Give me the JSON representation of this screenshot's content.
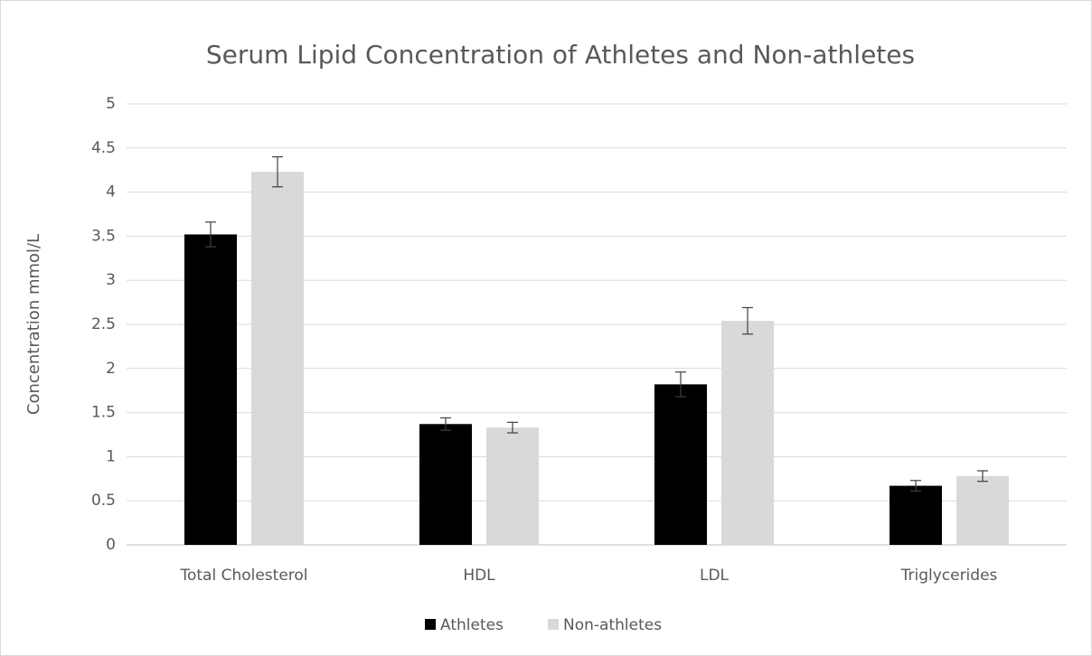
{
  "chart_data": {
    "type": "bar",
    "title": "Serum Lipid Concentration of Athletes and Non-athletes",
    "y_label": "Concentration mmol/L",
    "categories": [
      "Total Cholesterol",
      "HDL",
      "LDL",
      "Triglycerides"
    ],
    "series": [
      {
        "name": "Athletes",
        "color": "#000000",
        "values": [
          3.52,
          1.37,
          1.82,
          0.67
        ],
        "errors": [
          0.14,
          0.07,
          0.14,
          0.06
        ]
      },
      {
        "name": "Non-athletes",
        "color": "#d9d9d9",
        "values": [
          4.23,
          1.33,
          2.54,
          0.78
        ],
        "errors": [
          0.17,
          0.06,
          0.15,
          0.06
        ]
      }
    ],
    "ylim": [
      0,
      5
    ],
    "yticks": [
      0,
      0.5,
      1,
      1.5,
      2,
      2.5,
      3,
      3.5,
      4,
      4.5,
      5
    ],
    "grid": true,
    "legend": "bottom"
  }
}
